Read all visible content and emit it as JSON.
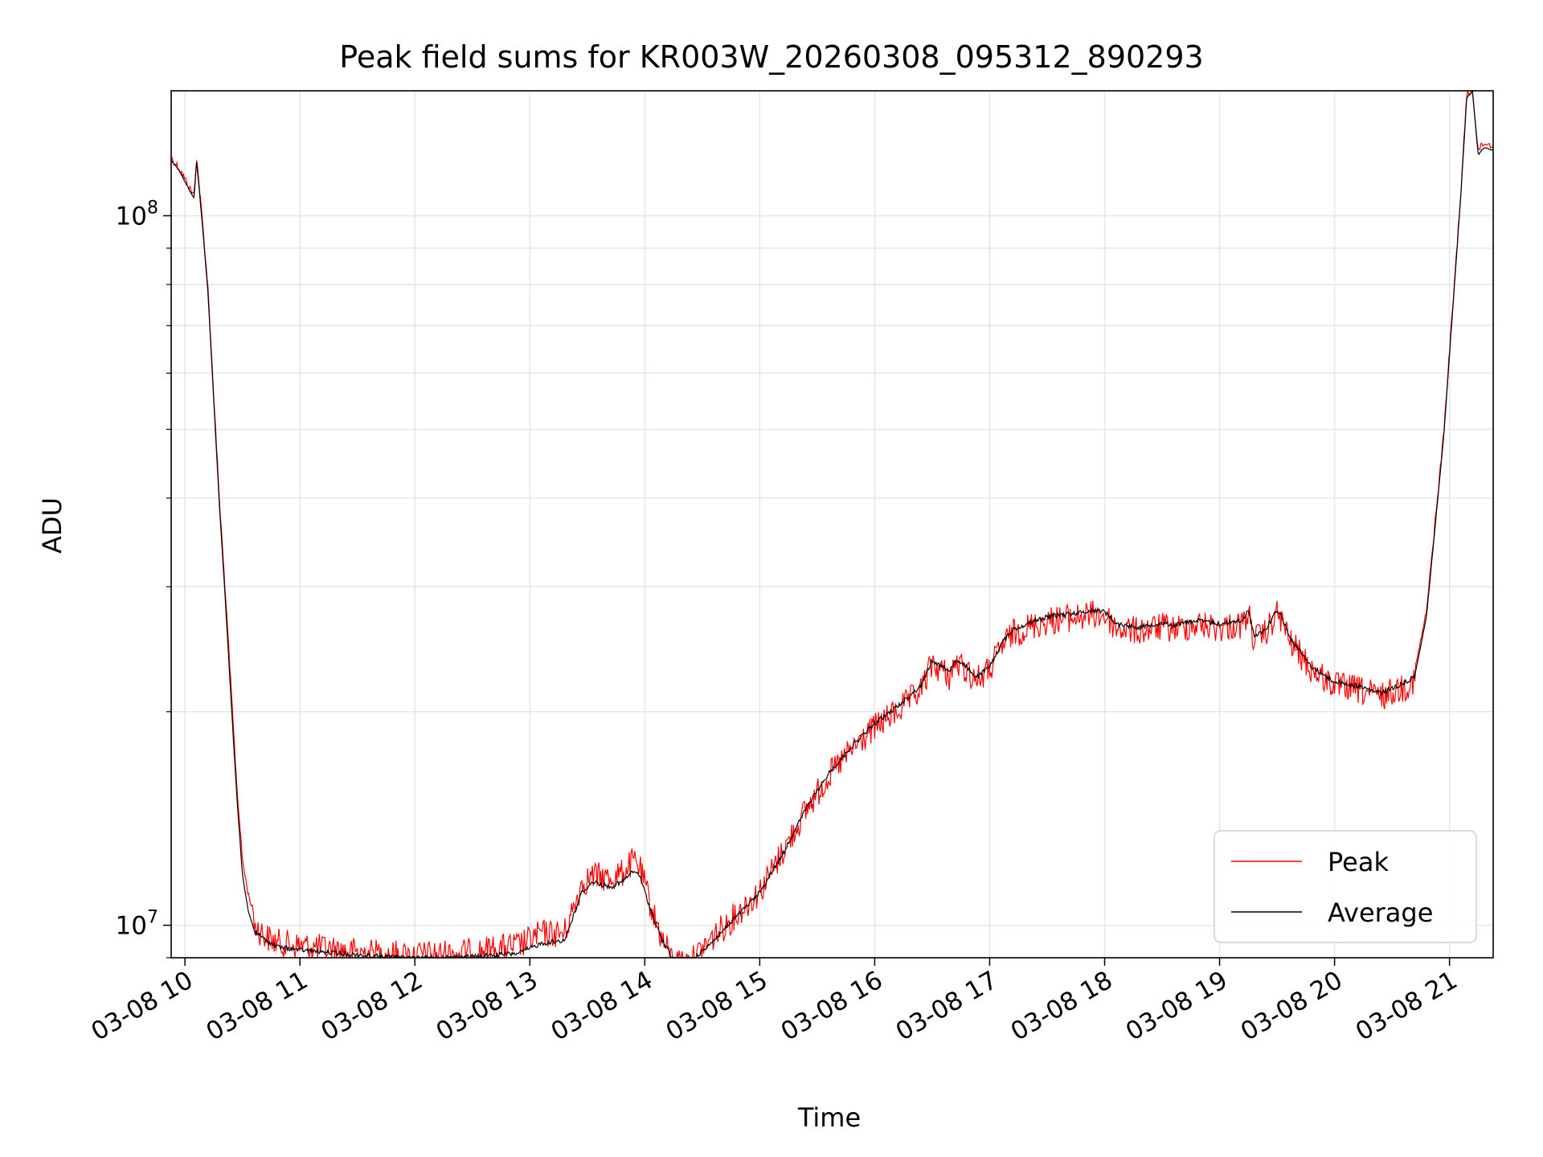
{
  "chart_data": {
    "type": "line",
    "title": "Peak field sums for KR003W_20260308_095312_890293",
    "xlabel": "Time",
    "ylabel": "ADU",
    "yscale": "log",
    "ylim": [
      9000000,
      150000000
    ],
    "x_unit": "hours",
    "xlim": [
      9.88,
      21.38
    ],
    "x_ticks": [
      {
        "value": 10,
        "label": "03-08 10"
      },
      {
        "value": 11,
        "label": "03-08 11"
      },
      {
        "value": 12,
        "label": "03-08 12"
      },
      {
        "value": 13,
        "label": "03-08 13"
      },
      {
        "value": 14,
        "label": "03-08 14"
      },
      {
        "value": 15,
        "label": "03-08 15"
      },
      {
        "value": 16,
        "label": "03-08 16"
      },
      {
        "value": 17,
        "label": "03-08 17"
      },
      {
        "value": 18,
        "label": "03-08 18"
      },
      {
        "value": 19,
        "label": "03-08 19"
      },
      {
        "value": 20,
        "label": "03-08 20"
      },
      {
        "value": 21,
        "label": "03-08 21"
      }
    ],
    "y_major_ticks": [
      {
        "value": 10000000,
        "base": "10",
        "exp": "7"
      },
      {
        "value": 100000000,
        "base": "10",
        "exp": "8"
      }
    ],
    "y_minor_ticks": [
      9000000,
      20000000,
      30000000,
      40000000,
      50000000,
      60000000,
      70000000,
      80000000,
      90000000
    ],
    "grid": true,
    "legend_position": "lower-right",
    "series": [
      {
        "name": "Peak",
        "color": "#ff0000",
        "noise": 0.09,
        "x": [
          9.88,
          9.95,
          10.05,
          10.08,
          10.1,
          10.15,
          10.2,
          10.3,
          10.35,
          10.4,
          10.45,
          10.5,
          10.55,
          10.6,
          10.7,
          10.8,
          11.0,
          11.5,
          12.0,
          12.5,
          12.9,
          13.1,
          13.3,
          13.4,
          13.45,
          13.55,
          13.7,
          13.8,
          13.9,
          13.95,
          14.05,
          14.15,
          14.25,
          14.4,
          14.6,
          15.0,
          15.2,
          15.4,
          15.6,
          15.8,
          15.9,
          16.0,
          16.2,
          16.4,
          16.5,
          16.65,
          16.7,
          16.8,
          16.85,
          16.9,
          17.0,
          17.1,
          17.2,
          17.4,
          17.5,
          17.6,
          17.8,
          17.9,
          18.0,
          18.1,
          18.3,
          18.5,
          18.6,
          18.8,
          19.0,
          19.2,
          19.25,
          19.3,
          19.4,
          19.5,
          19.55,
          19.6,
          19.8,
          20.0,
          20.2,
          20.4,
          20.6,
          20.7,
          20.8,
          20.95,
          21.1,
          21.15,
          21.2,
          21.25,
          21.3,
          21.38
        ],
        "y": [
          122000000,
          118000000,
          110000000,
          108000000,
          123000000,
          100000000,
          80000000,
          40000000,
          30000000,
          22000000,
          16000000,
          12500000,
          11200000,
          10500000,
          10100000,
          9900000,
          9800000,
          9600000,
          9500000,
          9600000,
          9800000,
          10200000,
          10200000,
          11300000,
          12000000,
          12300000,
          12200000,
          12400000,
          12900000,
          12700000,
          11200000,
          10000000,
          9300000,
          9300000,
          10100000,
          11700000,
          13300000,
          15200000,
          17000000,
          18500000,
          19200000,
          19900000,
          21000000,
          22400000,
          24500000,
          23500000,
          24500000,
          24000000,
          23500000,
          23300000,
          24000000,
          25800000,
          27000000,
          27800000,
          28100000,
          28300000,
          28500000,
          28700000,
          28600000,
          27500000,
          27200000,
          27600000,
          27400000,
          27800000,
          27500000,
          27800000,
          28800000,
          26500000,
          27000000,
          28800000,
          28000000,
          26500000,
          24000000,
          22800000,
          22500000,
          22000000,
          22700000,
          23200000,
          28000000,
          50000000,
          110000000,
          150000000,
          152000000,
          125000000,
          128000000,
          127000000
        ]
      },
      {
        "name": "Average",
        "color": "#000000",
        "noise": 0.015,
        "x": [
          9.88,
          9.95,
          10.05,
          10.08,
          10.1,
          10.15,
          10.2,
          10.3,
          10.35,
          10.4,
          10.45,
          10.5,
          10.55,
          10.6,
          10.7,
          10.8,
          11.0,
          11.5,
          12.0,
          12.5,
          12.9,
          13.1,
          13.3,
          13.4,
          13.45,
          13.55,
          13.7,
          13.8,
          13.9,
          13.95,
          14.05,
          14.15,
          14.25,
          14.4,
          14.6,
          15.0,
          15.2,
          15.4,
          15.6,
          15.8,
          15.9,
          16.0,
          16.2,
          16.4,
          16.5,
          16.65,
          16.7,
          16.8,
          16.85,
          16.9,
          17.0,
          17.1,
          17.2,
          17.4,
          17.5,
          17.6,
          17.8,
          17.9,
          18.0,
          18.1,
          18.3,
          18.5,
          18.6,
          18.8,
          19.0,
          19.2,
          19.25,
          19.3,
          19.4,
          19.5,
          19.55,
          19.6,
          19.8,
          20.0,
          20.2,
          20.4,
          20.6,
          20.7,
          20.8,
          20.95,
          21.1,
          21.15,
          21.2,
          21.25,
          21.3,
          21.38
        ],
        "y": [
          120000000,
          116000000,
          108000000,
          106000000,
          120000000,
          98000000,
          78000000,
          39000000,
          29000000,
          21000000,
          15300000,
          11800000,
          10500000,
          9900000,
          9600000,
          9400000,
          9300000,
          9150000,
          9050000,
          9100000,
          9200000,
          9500000,
          9600000,
          10600000,
          11200000,
          11600000,
          11400000,
          11600000,
          12000000,
          11900000,
          10600000,
          9600000,
          9000000,
          8950000,
          9600000,
          11200000,
          12700000,
          14700000,
          16500000,
          18000000,
          18700000,
          19400000,
          20500000,
          21900000,
          23800000,
          23000000,
          23800000,
          23300000,
          22800000,
          22600000,
          23300000,
          25100000,
          26300000,
          27100000,
          27400000,
          27600000,
          27800000,
          28000000,
          27900000,
          26800000,
          26500000,
          26900000,
          26700000,
          27100000,
          26800000,
          27100000,
          28000000,
          25800000,
          26300000,
          28100000,
          27300000,
          25800000,
          23300000,
          22200000,
          21900000,
          21400000,
          22100000,
          22600000,
          27300000,
          49000000,
          108000000,
          147000000,
          150000000,
          122000000,
          125000000,
          124000000
        ]
      }
    ]
  }
}
